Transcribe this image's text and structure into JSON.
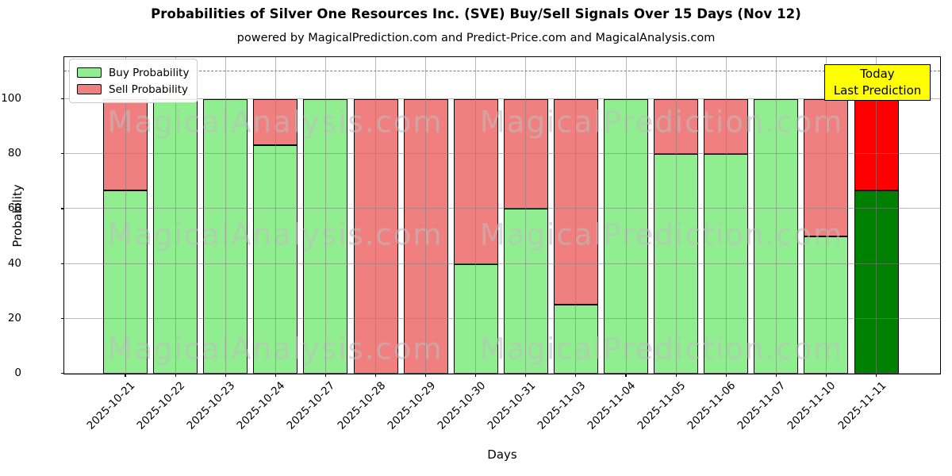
{
  "figure": {
    "title": "Probabilities of Silver One Resources Inc. (SVE) Buy/Sell Signals Over 15 Days (Nov 12)",
    "subtitle": "powered by MagicalPrediction.com and Predict-Price.com and MagicalAnalysis.com"
  },
  "annotation": {
    "line1": "Today",
    "line2": "Last Prediction"
  },
  "watermarks": {
    "left_text": "MagicalAnalysis.com",
    "right_text": "MagicalPrediction.com"
  },
  "colors": {
    "buy": "#90ee90",
    "sell": "#f08080",
    "buy_final": "#008000",
    "sell_final": "#ff0000",
    "annotation_bg": "#ffff00",
    "grid": "#808080",
    "bar_edge": "#000000"
  },
  "chart_data": {
    "type": "bar",
    "stacked": true,
    "title": "Probabilities of Silver One Resources Inc. (SVE) Buy/Sell Signals Over 15 Days (Nov 12)",
    "xlabel": "Days",
    "ylabel": "Probability",
    "ylim": [
      0,
      115
    ],
    "yticks": [
      0,
      20,
      40,
      60,
      80,
      100
    ],
    "grid": true,
    "legend_position": "upper left",
    "reference_line": {
      "y": 110,
      "style": "dashed",
      "color": "#7a7a7a"
    },
    "highlight_last_bar": true,
    "categories": [
      "2025-10-21",
      "2025-10-22",
      "2025-10-23",
      "2025-10-24",
      "2025-10-27",
      "2025-10-28",
      "2025-10-29",
      "2025-10-30",
      "2025-10-31",
      "2025-11-03",
      "2025-11-04",
      "2025-11-05",
      "2025-11-06",
      "2025-11-07",
      "2025-11-10",
      "2025-11-11"
    ],
    "series": [
      {
        "name": "Buy Probability",
        "color": "#90ee90",
        "final_bar_color": "#008000",
        "values": [
          66.7,
          100,
          100,
          83.3,
          100,
          0,
          0,
          40,
          60,
          25,
          100,
          80,
          80,
          100,
          50,
          66.7
        ]
      },
      {
        "name": "Sell Probability",
        "color": "#f08080",
        "final_bar_color": "#ff0000",
        "values": [
          33.3,
          0,
          0,
          16.7,
          0,
          100,
          100,
          60,
          40,
          75,
          0,
          20,
          20,
          0,
          50,
          33.3
        ]
      }
    ]
  }
}
